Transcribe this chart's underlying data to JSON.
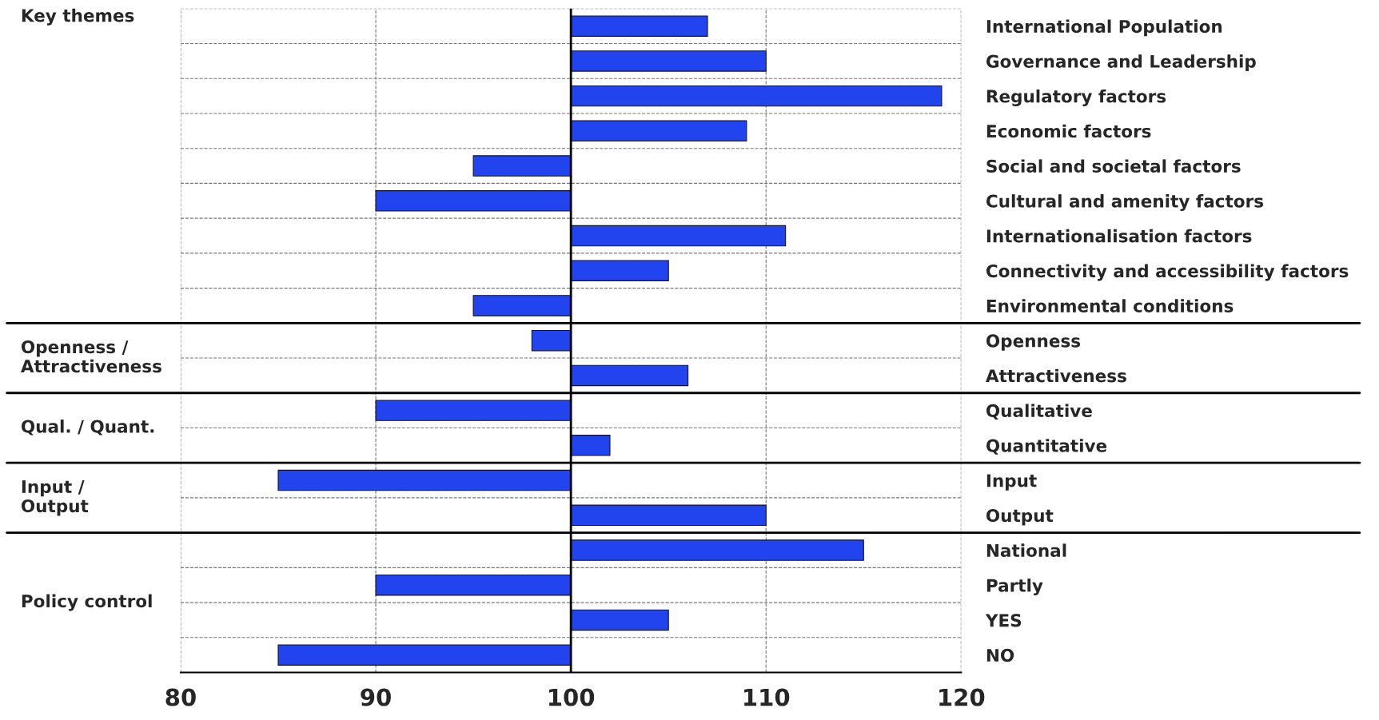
{
  "chart_data": {
    "type": "bar",
    "orientation": "horizontal",
    "categories": [
      "International Population",
      "Governance and Leadership",
      "Regulatory factors",
      "Economic factors",
      "Social and societal factors",
      "Cultural and amenity factors",
      "Internationalisation factors",
      "Connectivity and accessibility factors",
      "Environmental conditions",
      "Openness",
      "Attractiveness",
      "Qualitative",
      "Quantitative",
      "Input",
      "Output",
      "National",
      "Partly",
      "YES",
      "NO"
    ],
    "base": [
      100,
      100,
      100,
      100,
      100,
      100,
      100,
      100,
      100,
      100,
      100,
      100,
      100,
      100,
      100,
      100,
      100,
      100,
      100
    ],
    "values": [
      7,
      10,
      19,
      9,
      -5,
      -10,
      11,
      5,
      -5,
      -2,
      6,
      -10,
      2,
      -15,
      10,
      15,
      -10,
      5,
      -15
    ],
    "color": "#2244ee",
    "xlim": [
      80,
      120
    ],
    "xticks": [
      80,
      90,
      100,
      110,
      120
    ],
    "grid": true,
    "annotations": [
      "Key themes",
      "Openness /\nAttractiveness",
      "Qual. / Quant.",
      "Input /\nOutput",
      "Policy control"
    ]
  }
}
